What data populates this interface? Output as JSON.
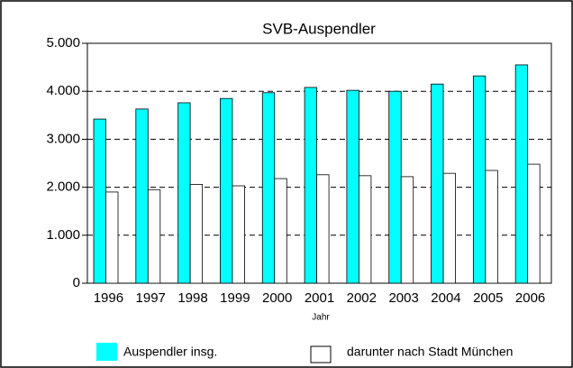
{
  "chart_data": {
    "type": "bar",
    "title": "SVB-Auspendler",
    "x_label": "Jahr",
    "categories": [
      "1996",
      "1997",
      "1998",
      "1999",
      "2000",
      "2001",
      "2002",
      "2003",
      "2004",
      "2005",
      "2006"
    ],
    "series": [
      {
        "name": "Auspendler insg.",
        "color": "#00ffff",
        "values": [
          3420,
          3630,
          3760,
          3850,
          3970,
          4080,
          4020,
          4000,
          4150,
          4320,
          4550
        ]
      },
      {
        "name": "darunter nach Stadt München",
        "color": "#ffffff",
        "values": [
          1900,
          1950,
          2060,
          2030,
          2180,
          2260,
          2240,
          2220,
          2290,
          2350,
          2480
        ]
      }
    ],
    "ylim": [
      0,
      5000
    ],
    "yticks": [
      0,
      {
        "value": 1000,
        "label": "1.000"
      },
      {
        "value": 2000,
        "label": "2.000"
      },
      {
        "value": 3000,
        "label": "3.000"
      },
      {
        "value": 4000,
        "label": "4.000"
      },
      {
        "value": 5000,
        "label": "5.000"
      }
    ],
    "grid": true
  }
}
